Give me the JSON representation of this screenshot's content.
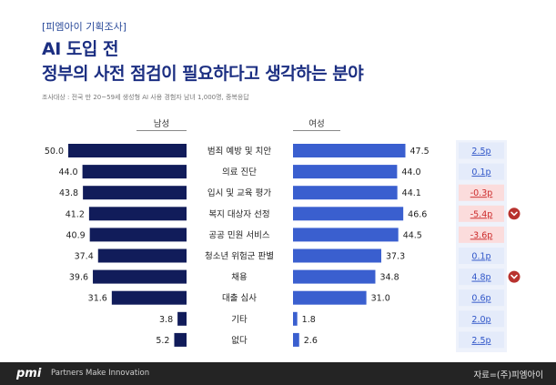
{
  "header": {
    "tag": "[피엠아이 기획조사]",
    "title_line1": "AI 도입 전",
    "title_line2": "정부의 사전 점검이 필요하다고 생각하는 분야",
    "note": "조사대상 : 전국 만 20~59세 생성형 AI 사용 경험자 남녀 1,000명, 중복응답"
  },
  "footer": {
    "logo": "pmi",
    "tagline": "Partners Make Innovation",
    "source": "자료=(주)피엠아이"
  },
  "colors": {
    "male": "#111c5a",
    "female": "#3a5fcf",
    "diff_positive_bg": "#e4ebfa",
    "diff_positive_text": "#2f55c8",
    "diff_negative_bg": "#fbdcdc",
    "diff_negative_text": "#cc2a2a",
    "marker": "#b8322e"
  },
  "chart_data": {
    "type": "bar",
    "series_labels": {
      "male": "남성",
      "female": "여성"
    },
    "categories": [
      "범죄 예방 및 치안",
      "의료 진단",
      "입시 및 교육 평가",
      "복지 대상자 선정",
      "공공 민원 서비스",
      "청소년 위험군 판별",
      "채용",
      "대출 심사",
      "기타",
      "없다"
    ],
    "series": [
      {
        "name": "남성",
        "values": [
          50.0,
          44.0,
          43.8,
          41.2,
          40.9,
          37.4,
          39.6,
          31.6,
          3.8,
          5.2
        ]
      },
      {
        "name": "여성",
        "values": [
          47.5,
          44.0,
          44.1,
          46.6,
          44.5,
          37.3,
          34.8,
          31.0,
          1.8,
          2.6
        ]
      }
    ],
    "male_labels": [
      "50.0",
      "44.0",
      "43.8",
      "41.2",
      "40.9",
      "37.4",
      "39.6",
      "31.6",
      "3.8",
      "5.2"
    ],
    "female_labels": [
      "47.5",
      "44.0",
      "44.1",
      "46.6",
      "44.5",
      "37.3",
      "34.8",
      "31.0",
      "1.8",
      "2.6"
    ],
    "differences": [
      "2.5p",
      "0.1p",
      "-0.3p",
      "-5.4p",
      "-3.6p",
      "0.1p",
      "4.8p",
      "0.6p",
      "2.0p",
      "2.5p"
    ],
    "difference_values": [
      2.5,
      0.1,
      -0.3,
      -5.4,
      -3.6,
      0.1,
      4.8,
      0.6,
      2.0,
      2.5
    ],
    "highlighted": [
      false,
      false,
      false,
      true,
      false,
      false,
      true,
      false,
      false,
      false
    ],
    "xlim": [
      0,
      50
    ]
  }
}
